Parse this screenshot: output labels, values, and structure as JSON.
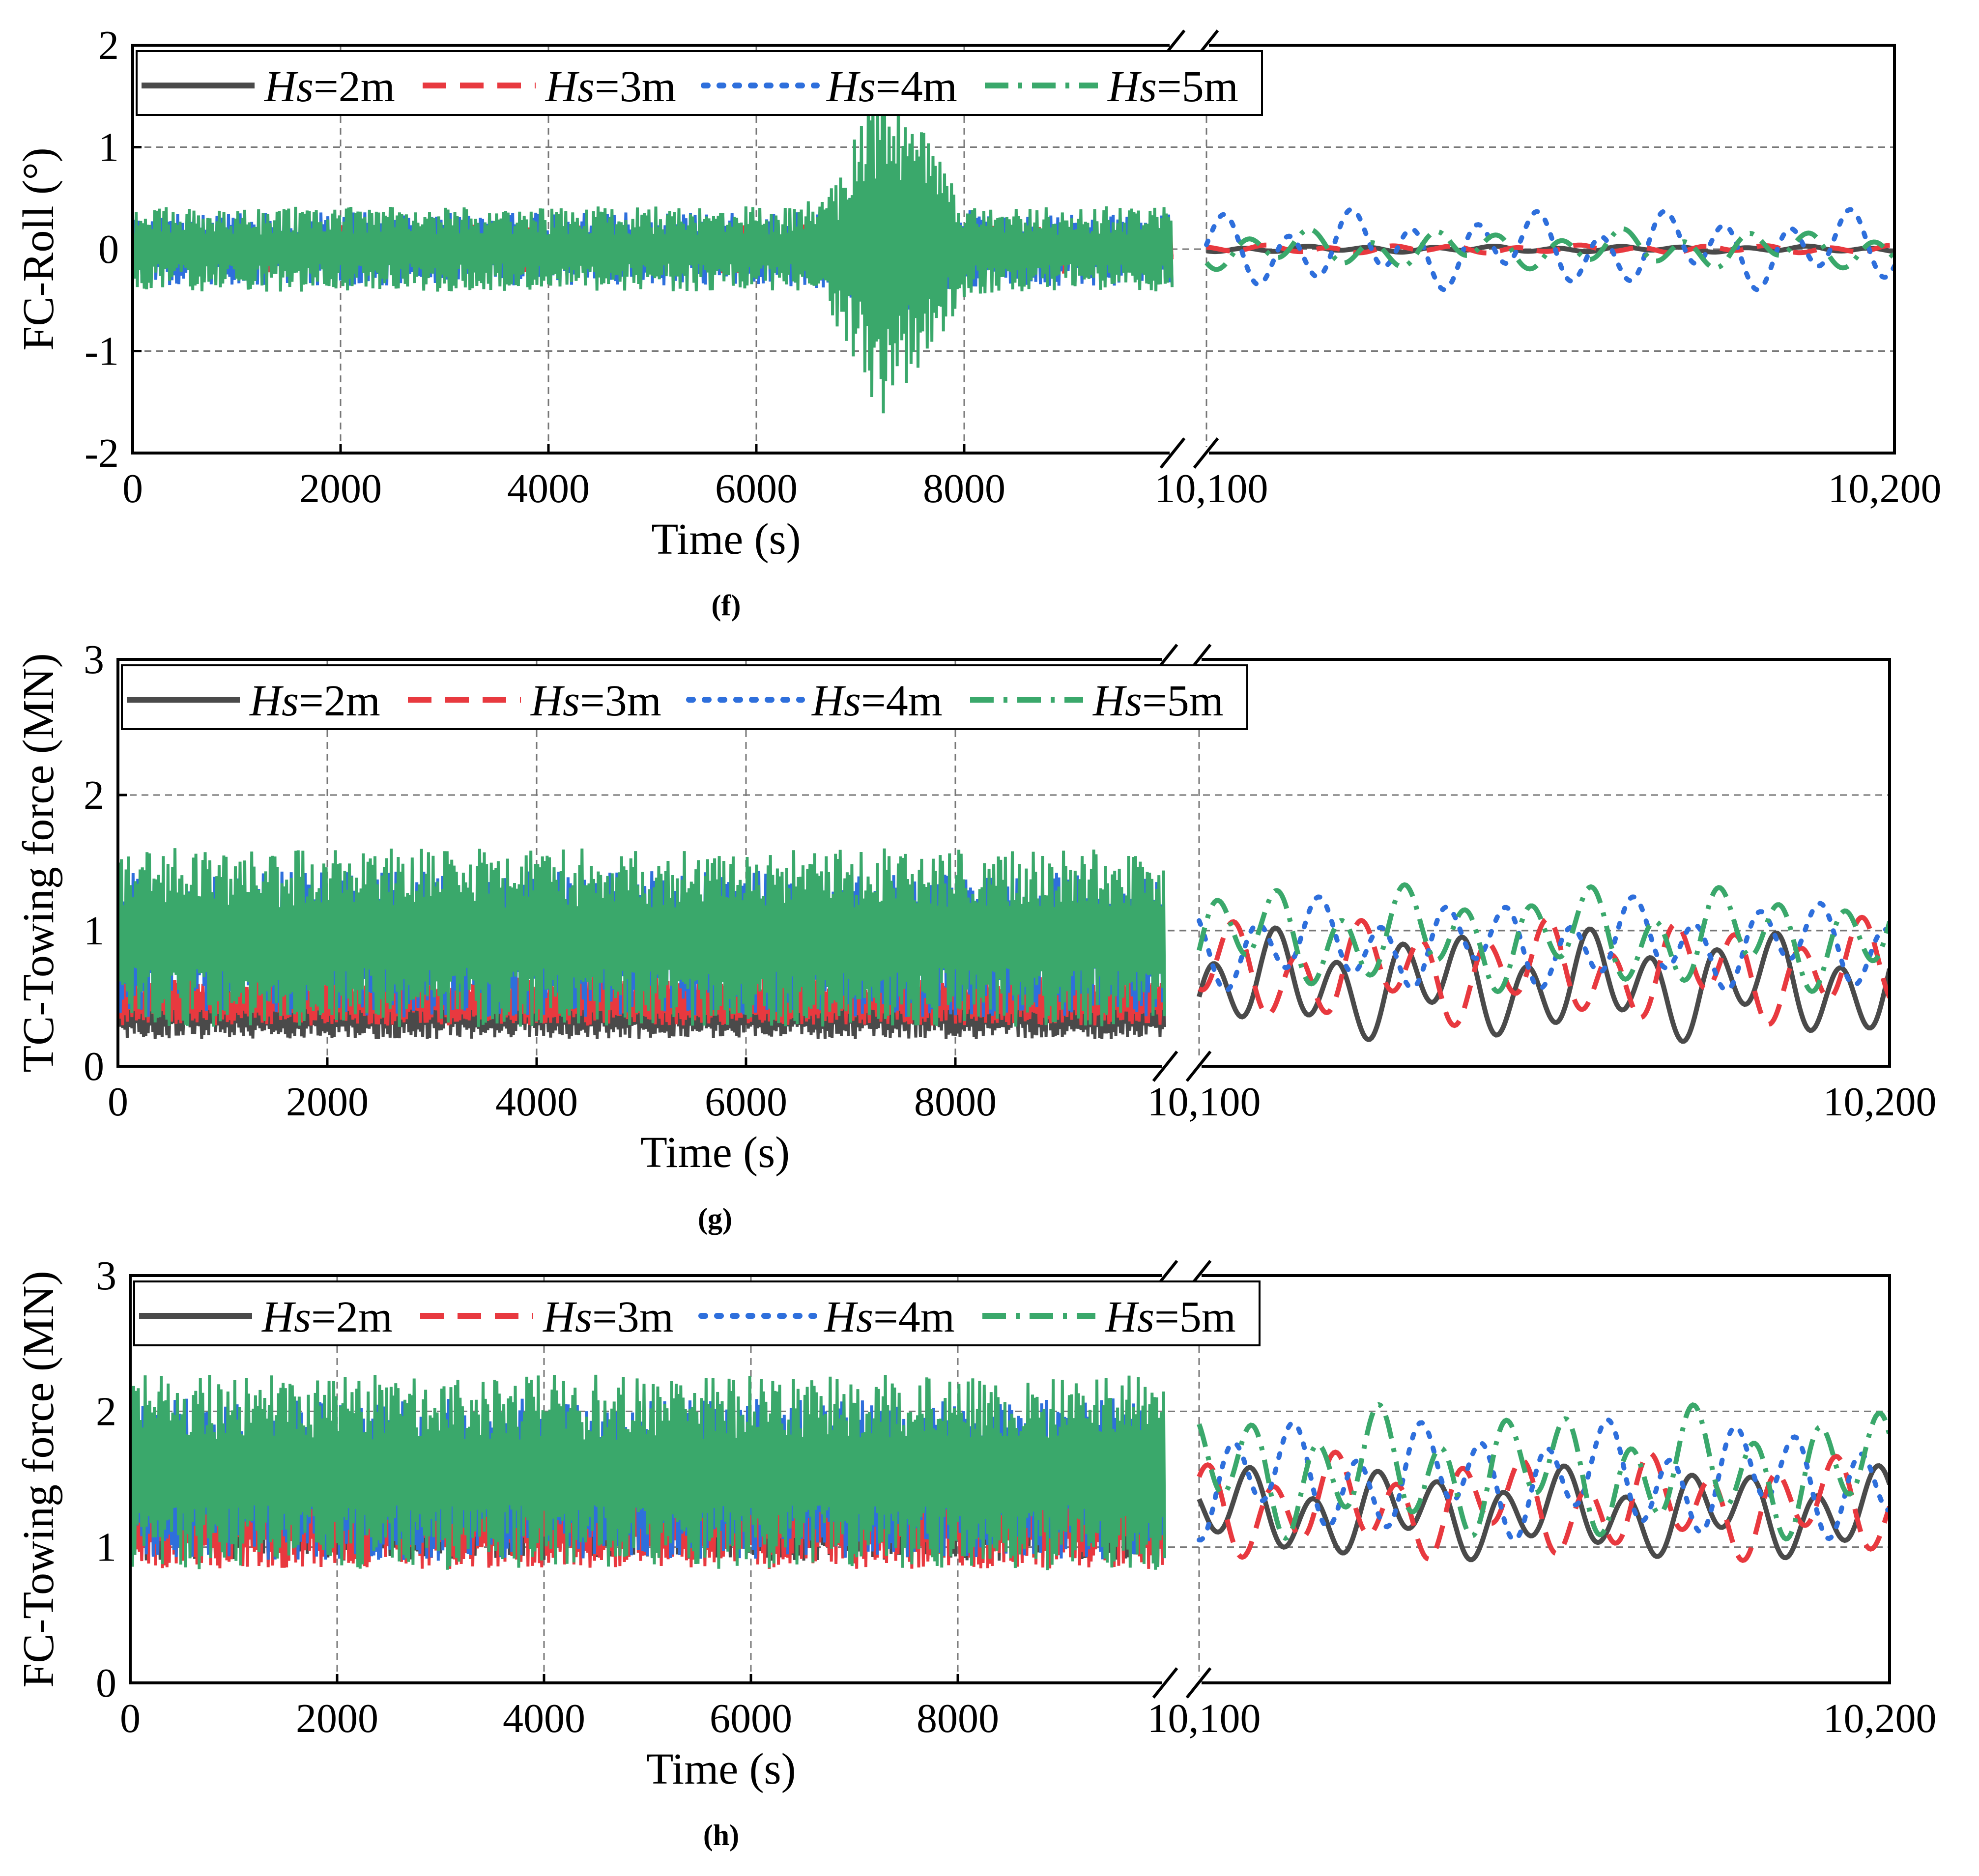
{
  "legend": [
    {
      "prefix": "Hs",
      "suffix": "=2m",
      "color": "#4a4a4a",
      "dash": "solid"
    },
    {
      "prefix": "Hs",
      "suffix": "=3m",
      "color": "#e8393f",
      "dash": "dash"
    },
    {
      "prefix": "Hs",
      "suffix": "=4m",
      "color": "#2e6fdc",
      "dash": "dot"
    },
    {
      "prefix": "Hs",
      "suffix": "=5m",
      "color": "#3aa86b",
      "dash": "dashdot"
    }
  ],
  "chart_data": [
    {
      "type": "line",
      "caption": "(f)",
      "ylabel": "FC-Roll (°)",
      "xlabel": "Time (s)",
      "ylim": [
        -2,
        2
      ],
      "yticks": [
        "-2",
        "-1",
        "0",
        "1",
        "2"
      ],
      "xticks_left": [
        "0",
        "2000",
        "4000",
        "6000",
        "8000"
      ],
      "xticks_right": [
        "10,100",
        "10,200"
      ],
      "xlim_left": [
        0,
        10000
      ],
      "xlim_right": [
        10100,
        10200
      ],
      "grid": true,
      "legend_position": "top",
      "series": [
        {
          "name": "Hs=2m",
          "left_mean": 0.0,
          "left_amp": 0.12,
          "right_mean": 0.0,
          "right_amp": 0.03,
          "left_scale_at_7300s": 1.0
        },
        {
          "name": "Hs=3m",
          "left_mean": 0.0,
          "left_amp": 0.2,
          "right_mean": 0.0,
          "right_amp": 0.04,
          "left_scale_at_7300s": 1.2
        },
        {
          "name": "Hs=4m",
          "left_mean": 0.0,
          "left_amp": 0.3,
          "right_mean": 0.0,
          "right_amp": 0.4,
          "left_scale_at_7300s": 2.0
        },
        {
          "name": "Hs=5m",
          "left_mean": 0.0,
          "left_amp": 0.35,
          "right_mean": 0.0,
          "right_amp": 0.2,
          "left_scale_at_7300s": 4.2
        }
      ]
    },
    {
      "type": "line",
      "caption": "(g)",
      "ylabel": "TC-Towing force (MN)",
      "xlabel": "Time (s)",
      "ylim": [
        0,
        3
      ],
      "yticks": [
        "0",
        "1",
        "2",
        "3"
      ],
      "xticks_left": [
        "0",
        "2000",
        "4000",
        "6000",
        "8000"
      ],
      "xticks_right": [
        "10,100",
        "10,200"
      ],
      "xlim_left": [
        0,
        10000
      ],
      "xlim_right": [
        10100,
        10200
      ],
      "grid": true,
      "legend_position": "top",
      "series": [
        {
          "name": "Hs=2m",
          "left_mean": 0.38,
          "left_amp": 0.15,
          "right_mean": 0.6,
          "right_amp": 0.42
        },
        {
          "name": "Hs=3m",
          "left_mean": 0.48,
          "left_amp": 0.15,
          "right_mean": 0.7,
          "right_amp": 0.4
        },
        {
          "name": "Hs=4m",
          "left_mean": 0.9,
          "left_amp": 0.45,
          "right_mean": 0.9,
          "right_amp": 0.35
        },
        {
          "name": "Hs=5m",
          "left_mean": 0.95,
          "left_amp": 0.55,
          "right_mean": 0.95,
          "right_amp": 0.4
        }
      ]
    },
    {
      "type": "line",
      "caption": "(h)",
      "ylabel": "FC-Towing force (MN)",
      "xlabel": "Time (s)",
      "ylim": [
        0,
        3
      ],
      "yticks": [
        "0",
        "1",
        "2",
        "3"
      ],
      "xticks_left": [
        "0",
        "2000",
        "4000",
        "6000",
        "8000"
      ],
      "xticks_right": [
        "10,100",
        "10,200"
      ],
      "xlim_left": [
        0,
        10000
      ],
      "xlim_right": [
        10100,
        10200
      ],
      "grid": true,
      "legend_position": "top",
      "series": [
        {
          "name": "Hs=2m",
          "left_mean": 1.2,
          "left_amp": 0.25,
          "right_mean": 1.25,
          "right_amp": 0.35
        },
        {
          "name": "Hs=3m",
          "left_mean": 1.2,
          "left_amp": 0.3,
          "right_mean": 1.3,
          "right_amp": 0.4
        },
        {
          "name": "Hs=4m",
          "left_mean": 1.5,
          "left_amp": 0.5,
          "right_mean": 1.5,
          "right_amp": 0.45
        },
        {
          "name": "Hs=5m",
          "left_mean": 1.55,
          "left_amp": 0.6,
          "right_mean": 1.55,
          "right_amp": 0.5
        }
      ]
    }
  ]
}
